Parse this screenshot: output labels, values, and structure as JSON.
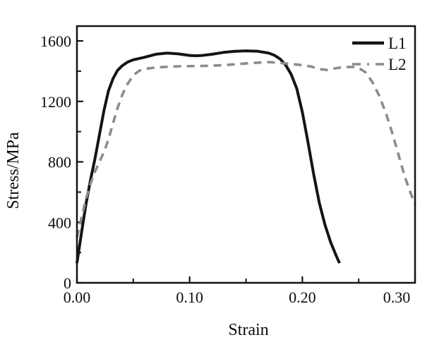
{
  "chart_data": {
    "type": "line",
    "title": "",
    "xlabel": "Strain",
    "ylabel": "Stress/MPa",
    "xlim": [
      0.0,
      0.3
    ],
    "ylim": [
      0,
      1600
    ],
    "grid": false,
    "legend_position": "top-right-inside",
    "x_major_ticks": [
      0.0,
      0.1,
      0.2,
      0.3
    ],
    "x_major_labels": [
      "0.00",
      "0.10",
      "0.20",
      "0.30"
    ],
    "x_minor_ticks": [
      0.05,
      0.15,
      0.25
    ],
    "y_major_ticks": [
      0,
      400,
      800,
      1200,
      1600
    ],
    "y_major_labels": [
      "0",
      "400",
      "800",
      "1200",
      "1600"
    ],
    "y_minor_ticks": [
      200,
      600,
      1000,
      1400
    ],
    "axis_color": "#141414",
    "series": [
      {
        "name": "L1",
        "color": "#141414",
        "style": "solid",
        "points": [
          [
            0.0,
            130
          ],
          [
            0.004,
            330
          ],
          [
            0.008,
            520
          ],
          [
            0.012,
            680
          ],
          [
            0.016,
            820
          ],
          [
            0.02,
            980
          ],
          [
            0.024,
            1140
          ],
          [
            0.028,
            1270
          ],
          [
            0.032,
            1350
          ],
          [
            0.036,
            1405
          ],
          [
            0.04,
            1435
          ],
          [
            0.045,
            1460
          ],
          [
            0.05,
            1475
          ],
          [
            0.06,
            1492
          ],
          [
            0.07,
            1512
          ],
          [
            0.08,
            1520
          ],
          [
            0.09,
            1514
          ],
          [
            0.1,
            1504
          ],
          [
            0.105,
            1502
          ],
          [
            0.11,
            1503
          ],
          [
            0.12,
            1512
          ],
          [
            0.13,
            1524
          ],
          [
            0.14,
            1531
          ],
          [
            0.15,
            1534
          ],
          [
            0.16,
            1532
          ],
          [
            0.17,
            1520
          ],
          [
            0.175,
            1506
          ],
          [
            0.18,
            1482
          ],
          [
            0.185,
            1443
          ],
          [
            0.19,
            1380
          ],
          [
            0.195,
            1285
          ],
          [
            0.2,
            1130
          ],
          [
            0.205,
            930
          ],
          [
            0.21,
            720
          ],
          [
            0.215,
            530
          ],
          [
            0.22,
            385
          ],
          [
            0.225,
            270
          ],
          [
            0.23,
            180
          ],
          [
            0.233,
            130
          ]
        ]
      },
      {
        "name": "L2",
        "color": "#8c8c8c",
        "style": "dashed",
        "points": [
          [
            0.0,
            300
          ],
          [
            0.004,
            430
          ],
          [
            0.008,
            555
          ],
          [
            0.012,
            655
          ],
          [
            0.016,
            735
          ],
          [
            0.02,
            800
          ],
          [
            0.024,
            865
          ],
          [
            0.028,
            950
          ],
          [
            0.032,
            1055
          ],
          [
            0.036,
            1155
          ],
          [
            0.04,
            1240
          ],
          [
            0.044,
            1305
          ],
          [
            0.048,
            1350
          ],
          [
            0.052,
            1385
          ],
          [
            0.056,
            1405
          ],
          [
            0.06,
            1415
          ],
          [
            0.07,
            1424
          ],
          [
            0.08,
            1429
          ],
          [
            0.09,
            1432
          ],
          [
            0.1,
            1433
          ],
          [
            0.11,
            1434
          ],
          [
            0.12,
            1436
          ],
          [
            0.13,
            1440
          ],
          [
            0.14,
            1445
          ],
          [
            0.15,
            1451
          ],
          [
            0.16,
            1456
          ],
          [
            0.17,
            1460
          ],
          [
            0.18,
            1455
          ],
          [
            0.19,
            1447
          ],
          [
            0.2,
            1440
          ],
          [
            0.208,
            1430
          ],
          [
            0.215,
            1413
          ],
          [
            0.222,
            1408
          ],
          [
            0.23,
            1420
          ],
          [
            0.238,
            1428
          ],
          [
            0.245,
            1428
          ],
          [
            0.25,
            1420
          ],
          [
            0.256,
            1393
          ],
          [
            0.262,
            1330
          ],
          [
            0.268,
            1240
          ],
          [
            0.274,
            1125
          ],
          [
            0.28,
            985
          ],
          [
            0.286,
            830
          ],
          [
            0.291,
            700
          ],
          [
            0.296,
            595
          ],
          [
            0.3,
            520
          ]
        ]
      }
    ]
  }
}
